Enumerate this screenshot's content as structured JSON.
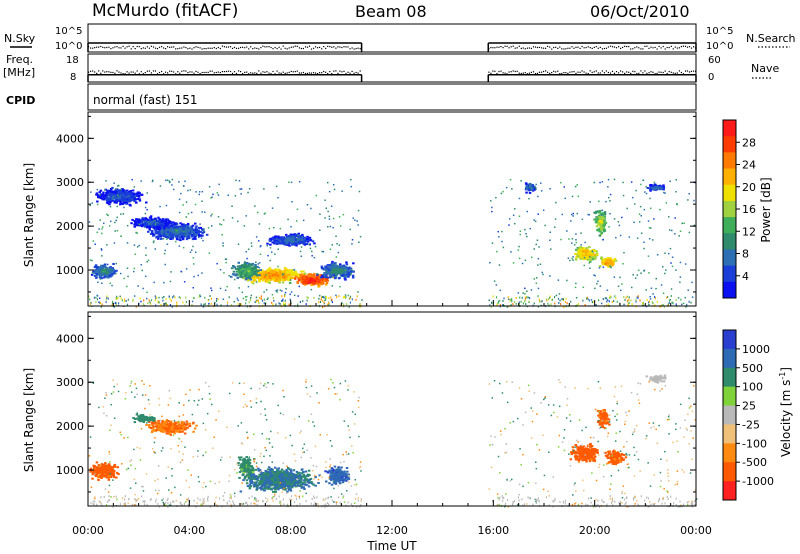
{
  "header": {
    "station": "McMurdo (fitACF)",
    "beam": "Beam 08",
    "date": "06/Oct/2010"
  },
  "top_panels": {
    "nsky_label": "N.Sky",
    "nsky_ticks": [
      "10^5",
      "10^0"
    ],
    "nsearch_label": "N.Search",
    "nsearch_ticks": [
      "10^5",
      "10^0"
    ],
    "freq_label": "Freq.",
    "freq_unit": "[MHz]",
    "freq_ticks": [
      "18",
      "8"
    ],
    "nave_label": "Nave",
    "nave_ticks": [
      "60",
      "0"
    ],
    "cpid_label": "CPID",
    "cpid_text": "normal (fast) 151"
  },
  "x_axis": {
    "label": "Time UT",
    "ticks": [
      "00:00",
      "04:00",
      "08:00",
      "12:00",
      "16:00",
      "20:00",
      "00:00"
    ],
    "range_hours": [
      0,
      24
    ]
  },
  "y_axis": {
    "label": "Slant Range [km]",
    "ticks": [
      "4000",
      "3000",
      "2000",
      "1000"
    ],
    "range_km": [
      180,
      4600
    ]
  },
  "power_colorbar": {
    "label": "Power [dB]",
    "ticks": [
      "28",
      "24",
      "20",
      "16",
      "12",
      "8",
      "4"
    ],
    "colors": [
      "#ff1a1a",
      "#ff3c00",
      "#ff7a00",
      "#ffb000",
      "#f0e000",
      "#a0d240",
      "#3fae5a",
      "#2e8b6b",
      "#2d6fb4",
      "#1a3fd8",
      "#0a10f0"
    ]
  },
  "velocity_colorbar": {
    "label": "Velocity [m s",
    "label_sup": "-1",
    "label_end": "]",
    "ticks": [
      "1000",
      "500",
      "100",
      "25",
      "-25",
      "-100",
      "-500",
      "-1000"
    ],
    "colors": [
      "#2a3fd0",
      "#2f6ab5",
      "#2e8b6b",
      "#7fd23a",
      "#b9b9b9",
      "#f0c078",
      "#ff8a10",
      "#ff5a00",
      "#ff2020"
    ]
  },
  "chart_data": {
    "type": "heatmap",
    "x_range": [
      0,
      24
    ],
    "y_range": [
      180,
      4600
    ],
    "data_gaps_hours": [
      [
        10.8,
        15.8
      ]
    ],
    "power_panel": {
      "blobs": [
        {
          "t": 7.2,
          "r": 900,
          "dt": 1.6,
          "dr": 220,
          "p": 24
        },
        {
          "t": 8.8,
          "r": 800,
          "dt": 1.0,
          "dr": 180,
          "p": 30
        },
        {
          "t": 6.2,
          "r": 1000,
          "dt": 0.7,
          "dr": 250,
          "p": 14
        },
        {
          "t": 9.8,
          "r": 1000,
          "dt": 0.9,
          "dr": 250,
          "p": 10
        },
        {
          "t": 0.6,
          "r": 1000,
          "dt": 0.6,
          "dr": 220,
          "p": 10
        },
        {
          "t": 3.5,
          "r": 1900,
          "dt": 1.5,
          "dr": 250,
          "p": 8
        },
        {
          "t": 1.2,
          "r": 2700,
          "dt": 1.2,
          "dr": 250,
          "p": 6
        },
        {
          "t": 2.5,
          "r": 2100,
          "dt": 1.0,
          "dr": 180,
          "p": 6
        },
        {
          "t": 8.0,
          "r": 1700,
          "dt": 1.2,
          "dr": 180,
          "p": 7
        },
        {
          "t": 19.6,
          "r": 1400,
          "dt": 0.6,
          "dr": 220,
          "p": 22
        },
        {
          "t": 20.5,
          "r": 1200,
          "dt": 0.4,
          "dr": 150,
          "p": 24
        },
        {
          "t": 20.2,
          "r": 2100,
          "dt": 0.3,
          "dr": 350,
          "p": 18
        },
        {
          "t": 17.4,
          "r": 2900,
          "dt": 0.3,
          "dr": 150,
          "p": 8
        },
        {
          "t": 22.4,
          "r": 2900,
          "dt": 0.5,
          "dr": 100,
          "p": 7
        }
      ]
    },
    "velocity_panel": {
      "blobs": [
        {
          "t": 7.5,
          "r": 800,
          "dt": 1.8,
          "dr": 350,
          "v": 300
        },
        {
          "t": 9.8,
          "r": 900,
          "dt": 0.6,
          "dr": 250,
          "v": 600
        },
        {
          "t": 0.6,
          "r": 1000,
          "dt": 0.7,
          "dr": 250,
          "v": -400
        },
        {
          "t": 3.2,
          "r": 2000,
          "dt": 1.2,
          "dr": 200,
          "v": -300
        },
        {
          "t": 2.2,
          "r": 2200,
          "dt": 0.6,
          "dr": 120,
          "v": 100
        },
        {
          "t": 6.2,
          "r": 1100,
          "dt": 0.4,
          "dr": 300,
          "v": 80
        },
        {
          "t": 19.6,
          "r": 1400,
          "dt": 0.7,
          "dr": 250,
          "v": -500
        },
        {
          "t": 20.8,
          "r": 1300,
          "dt": 0.5,
          "dr": 200,
          "v": -400
        },
        {
          "t": 20.3,
          "r": 2200,
          "dt": 0.3,
          "dr": 300,
          "v": -400
        },
        {
          "t": 22.4,
          "r": 3100,
          "dt": 0.5,
          "dr": 100,
          "v": 10
        }
      ]
    },
    "nsky_level": 1.6,
    "nsearch_level": 1.6,
    "freq_level_mhz": 10.6,
    "nave_level": 22
  }
}
